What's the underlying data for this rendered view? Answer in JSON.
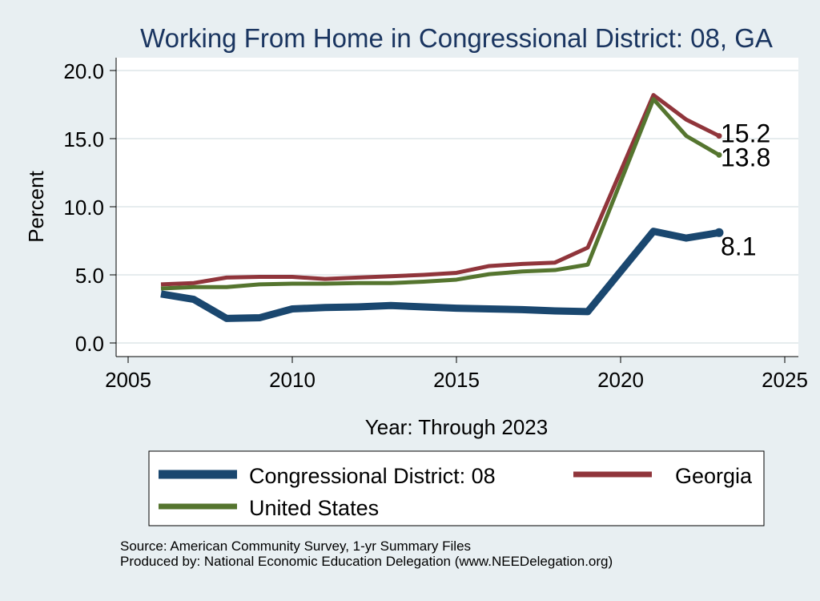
{
  "chart_data": {
    "type": "line",
    "title": "Working From Home in Congressional District: 08, GA",
    "xlabel": "Year: Through 2023",
    "ylabel": "Percent",
    "xlim": [
      2005,
      2025
    ],
    "ylim": [
      -0.5,
      20.0
    ],
    "xticks": [
      2005,
      2010,
      2015,
      2020,
      2025
    ],
    "yticks": [
      0.0,
      5.0,
      10.0,
      15.0,
      20.0
    ],
    "x": [
      2006,
      2007,
      2008,
      2009,
      2010,
      2011,
      2012,
      2013,
      2014,
      2015,
      2016,
      2017,
      2018,
      2019,
      2021,
      2022,
      2023
    ],
    "series": [
      {
        "name": "Congressional District: 08",
        "color": "#1a476f",
        "values": [
          3.6,
          3.2,
          1.8,
          1.85,
          2.5,
          2.6,
          2.65,
          2.75,
          2.65,
          2.55,
          2.5,
          2.45,
          2.35,
          2.3,
          8.2,
          7.7,
          8.1
        ],
        "end_label": "8.1"
      },
      {
        "name": "Georgia",
        "color": "#90353b",
        "values": [
          4.3,
          4.4,
          4.8,
          4.85,
          4.85,
          4.7,
          4.8,
          4.9,
          5.0,
          5.15,
          5.65,
          5.8,
          5.9,
          7.0,
          18.2,
          16.4,
          15.2
        ],
        "end_label": "15.2"
      },
      {
        "name": "United States",
        "color": "#55752f",
        "values": [
          4.0,
          4.1,
          4.1,
          4.3,
          4.35,
          4.35,
          4.4,
          4.4,
          4.5,
          4.65,
          5.05,
          5.25,
          5.35,
          5.75,
          17.9,
          15.2,
          13.8
        ],
        "end_label": "13.8"
      }
    ],
    "grid": "horizontal",
    "legend_position": "bottom"
  },
  "footer": {
    "source": "Source: American Community Survey, 1-yr Summary Files",
    "produced_by": "Produced by: National Economic Education Delegation (www.NEEDelegation.org)"
  }
}
